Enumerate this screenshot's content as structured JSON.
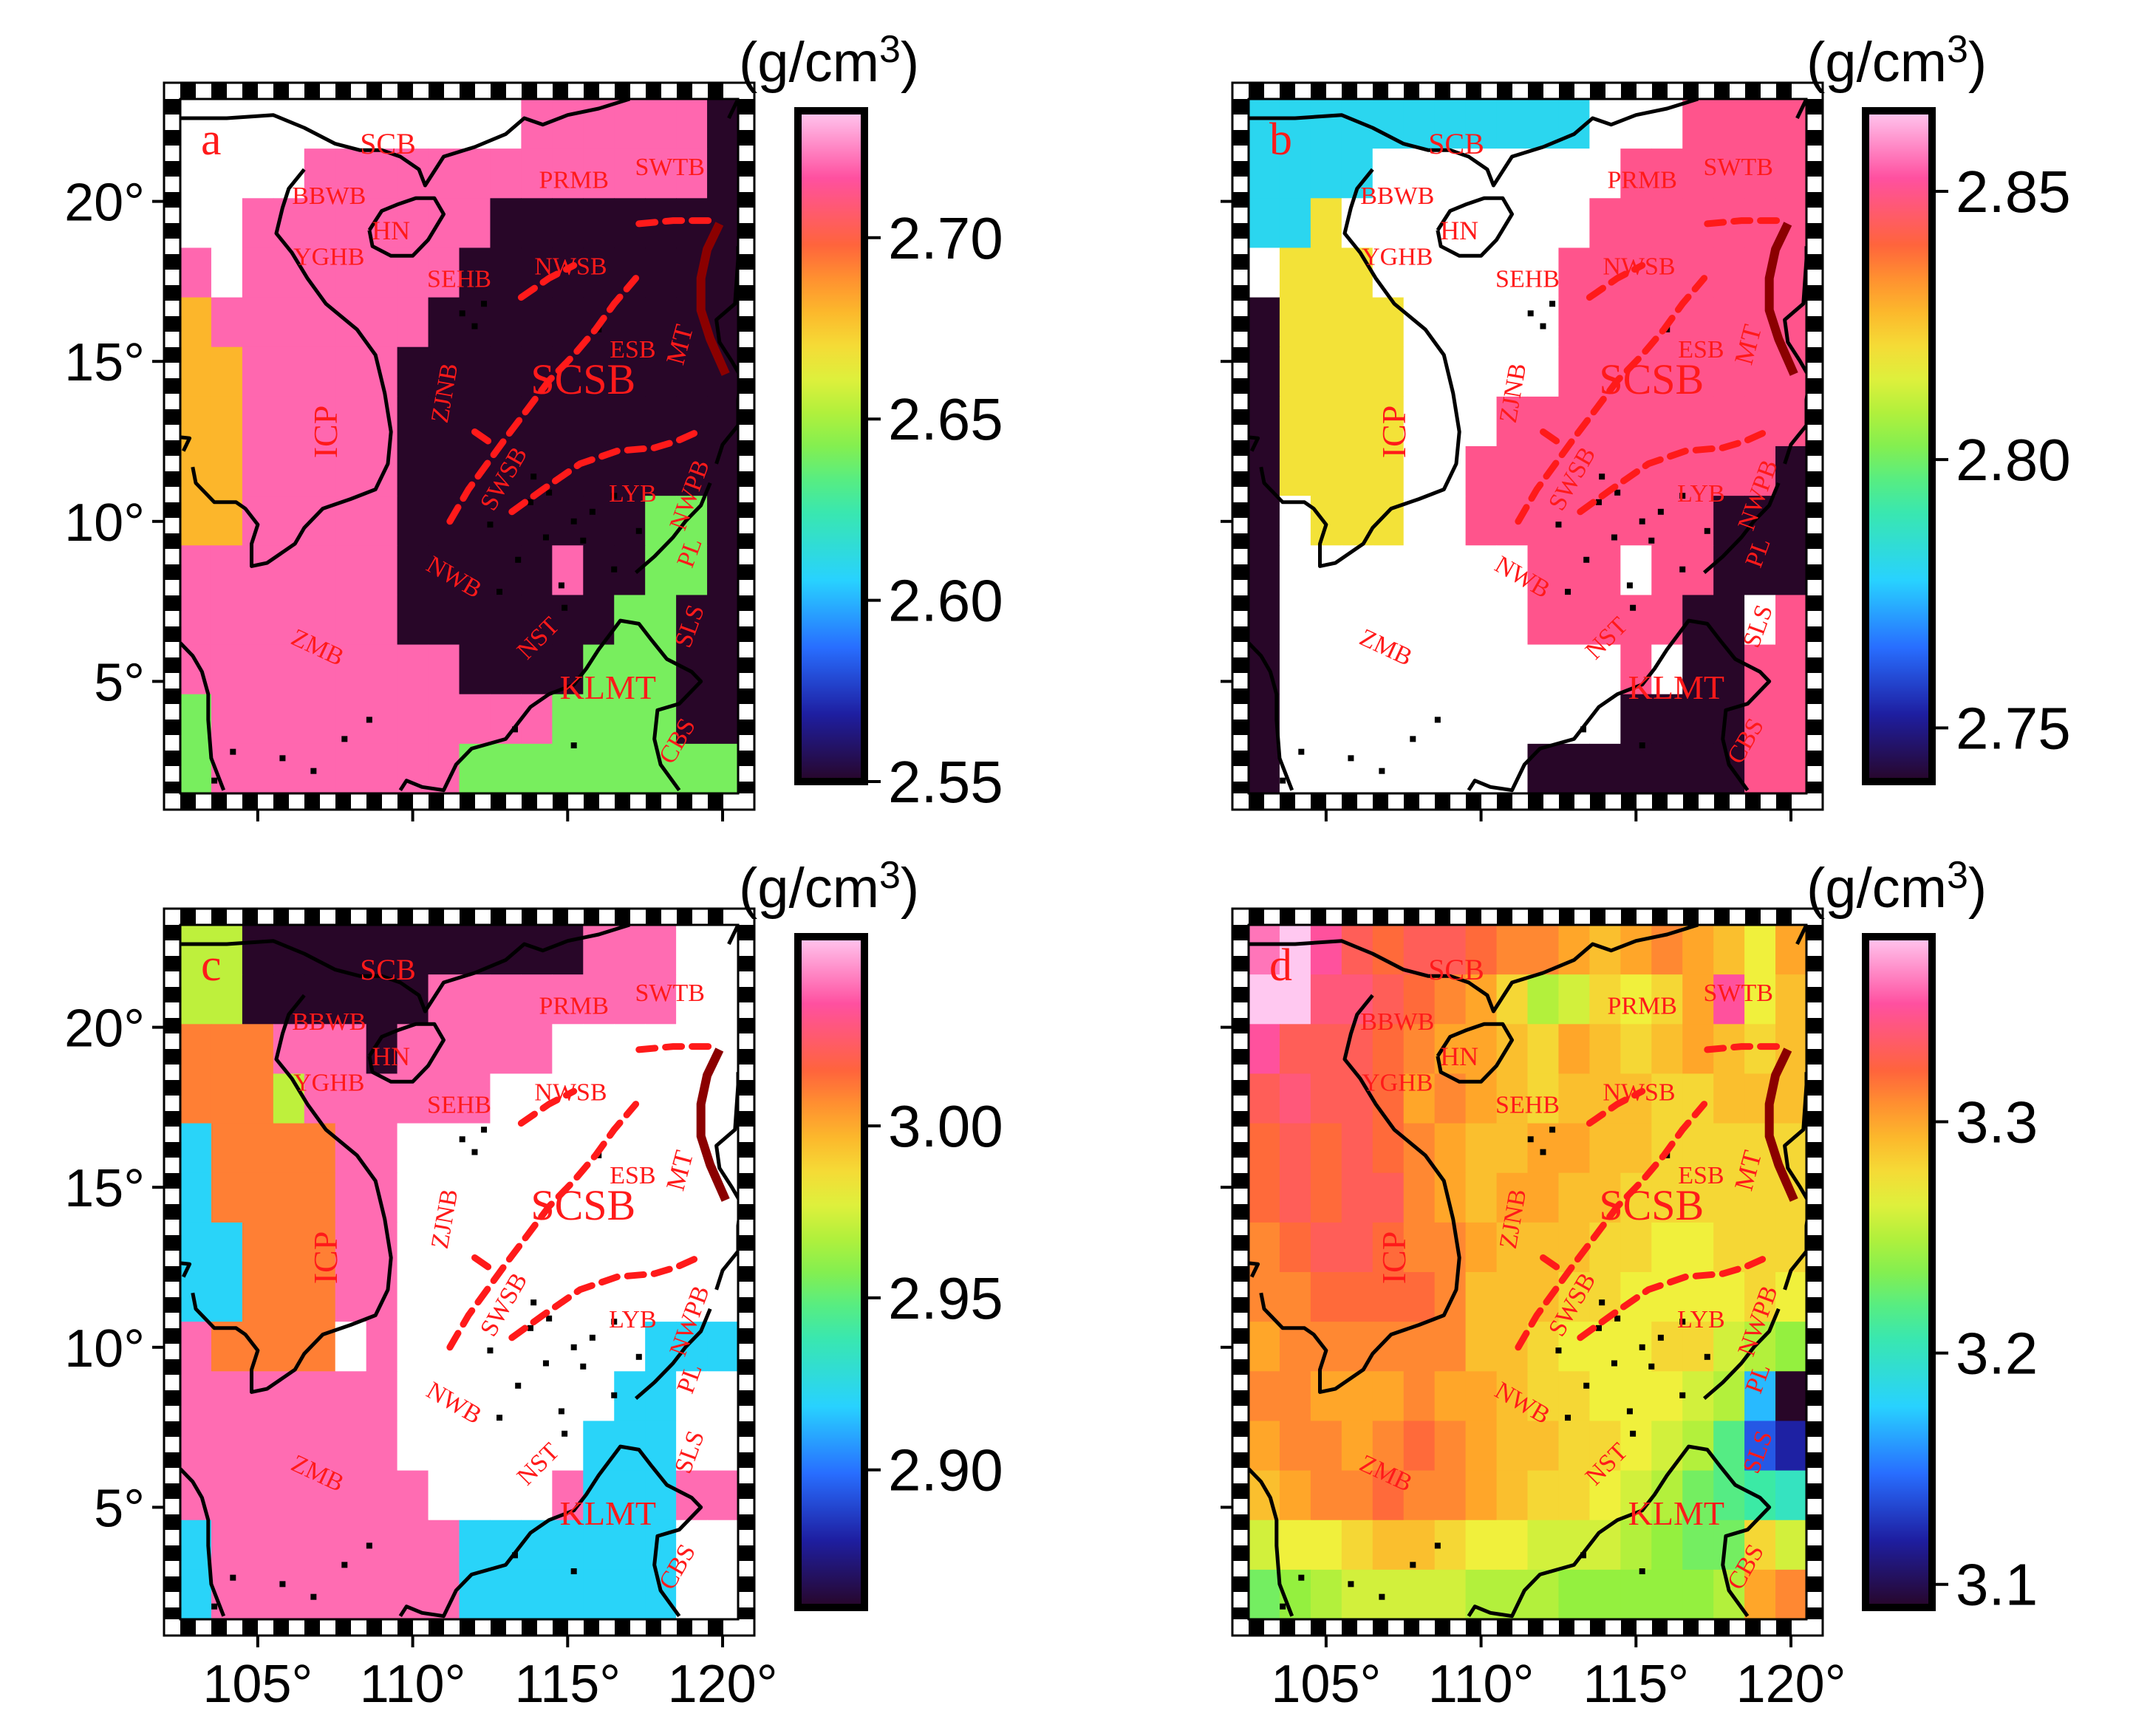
{
  "figure": {
    "lat_ticks": [
      "20°",
      "15°",
      "10°",
      "5°"
    ],
    "lon_ticks": [
      "105°",
      "110°",
      "115°",
      "120°"
    ]
  },
  "labels": {
    "SCB": "SCB",
    "BBWB": "BBWB",
    "HN": "HN",
    "YGHB": "YGHB",
    "SEHB": "SEHB",
    "PRMB": "PRMB",
    "SWTB": "SWTB",
    "NWSB": "NWSB",
    "ESB": "ESB",
    "MT": "MT",
    "SCSB": "SCSB",
    "ZJNB": "ZJNB",
    "ICP": "ICP",
    "SWSB": "SWSB",
    "LYB": "LYB",
    "NWPB": "NWPB",
    "PL": "PL",
    "NWB": "NWB",
    "ZMB": "ZMB",
    "NST": "NST",
    "SLS": "SLS",
    "KLMT": "KLMT",
    "CBS": "CBS"
  },
  "panels": [
    {
      "letter": "a",
      "unit": "(g/cm3)",
      "colorbar_ticks": [
        "2.70",
        "2.65",
        "2.60",
        "2.55"
      ],
      "colorbar_tick_values": [
        2.7,
        2.65,
        2.6,
        2.55
      ],
      "vmin": 2.55,
      "vmax": 2.735,
      "grid_values": [
        [
          2.74,
          2.74,
          2.74,
          2.74,
          2.74,
          2.74,
          2.74,
          2.74,
          2.74,
          2.74,
          2.74,
          2.72,
          2.72,
          2.72,
          2.72,
          2.72,
          2.72,
          2.55
        ],
        [
          2.74,
          2.74,
          2.74,
          2.74,
          2.72,
          2.72,
          2.72,
          2.72,
          2.72,
          2.72,
          2.72,
          2.72,
          2.72,
          2.72,
          2.72,
          2.72,
          2.72,
          2.55
        ],
        [
          2.74,
          2.74,
          2.72,
          2.72,
          2.72,
          2.72,
          2.72,
          2.72,
          2.72,
          2.72,
          2.55,
          2.55,
          2.55,
          2.55,
          2.55,
          2.55,
          2.55,
          2.55
        ],
        [
          2.72,
          2.74,
          2.72,
          2.72,
          2.72,
          2.72,
          2.72,
          2.72,
          2.72,
          2.55,
          2.55,
          2.55,
          2.55,
          2.55,
          2.55,
          2.55,
          2.55,
          2.55
        ],
        [
          2.68,
          2.72,
          2.72,
          2.72,
          2.72,
          2.72,
          2.72,
          2.72,
          2.55,
          2.55,
          2.55,
          2.55,
          2.55,
          2.55,
          2.55,
          2.55,
          2.55,
          2.55
        ],
        [
          2.68,
          2.68,
          2.72,
          2.72,
          2.72,
          2.72,
          2.72,
          2.55,
          2.55,
          2.55,
          2.55,
          2.55,
          2.55,
          2.55,
          2.55,
          2.55,
          2.55,
          2.55
        ],
        [
          2.68,
          2.68,
          2.72,
          2.72,
          2.72,
          2.72,
          2.72,
          2.55,
          2.55,
          2.55,
          2.55,
          2.55,
          2.55,
          2.55,
          2.55,
          2.55,
          2.55,
          2.55
        ],
        [
          2.68,
          2.68,
          2.72,
          2.72,
          2.72,
          2.72,
          2.72,
          2.55,
          2.55,
          2.55,
          2.55,
          2.55,
          2.55,
          2.55,
          2.55,
          2.55,
          2.55,
          2.55
        ],
        [
          2.68,
          2.68,
          2.72,
          2.72,
          2.72,
          2.72,
          2.72,
          2.55,
          2.55,
          2.55,
          2.55,
          2.55,
          2.55,
          2.55,
          2.55,
          2.64,
          2.64,
          2.55
        ],
        [
          2.72,
          2.72,
          2.72,
          2.72,
          2.72,
          2.72,
          2.72,
          2.55,
          2.55,
          2.55,
          2.55,
          2.55,
          2.72,
          2.55,
          2.55,
          2.64,
          2.64,
          2.55
        ],
        [
          2.72,
          2.72,
          2.72,
          2.72,
          2.72,
          2.72,
          2.72,
          2.55,
          2.55,
          2.55,
          2.55,
          2.55,
          2.55,
          2.55,
          2.64,
          2.64,
          2.55,
          2.55
        ],
        [
          2.72,
          2.72,
          2.72,
          2.72,
          2.72,
          2.72,
          2.72,
          2.72,
          2.72,
          2.55,
          2.55,
          2.55,
          2.55,
          2.64,
          2.64,
          2.64,
          2.55,
          2.55
        ],
        [
          2.64,
          2.72,
          2.72,
          2.72,
          2.72,
          2.72,
          2.72,
          2.72,
          2.72,
          2.72,
          2.72,
          2.72,
          2.64,
          2.64,
          2.64,
          2.64,
          2.55,
          2.55
        ],
        [
          2.64,
          2.72,
          2.72,
          2.72,
          2.72,
          2.72,
          2.72,
          2.72,
          2.72,
          2.64,
          2.64,
          2.64,
          2.64,
          2.64,
          2.64,
          2.64,
          2.64,
          2.64
        ]
      ]
    },
    {
      "letter": "b",
      "unit": "(g/cm3)",
      "colorbar_ticks": [
        "2.85",
        "2.80",
        "2.75"
      ],
      "colorbar_tick_values": [
        2.85,
        2.8,
        2.75
      ],
      "vmin": 2.74,
      "vmax": 2.865,
      "grid_values": [
        [
          2.78,
          2.78,
          2.78,
          2.78,
          2.78,
          2.78,
          2.78,
          2.78,
          2.78,
          2.78,
          2.78,
          2.87,
          2.87,
          2.87,
          2.85,
          2.85,
          2.85,
          2.85
        ],
        [
          2.78,
          2.78,
          2.78,
          2.78,
          2.87,
          2.87,
          2.87,
          2.87,
          2.87,
          2.87,
          2.87,
          2.87,
          2.85,
          2.85,
          2.85,
          2.85,
          2.85,
          2.85
        ],
        [
          2.78,
          2.78,
          2.82,
          2.87,
          2.87,
          2.87,
          2.87,
          2.87,
          2.87,
          2.87,
          2.87,
          2.85,
          2.85,
          2.85,
          2.85,
          2.85,
          2.85,
          2.85
        ],
        [
          2.87,
          2.82,
          2.82,
          2.82,
          2.87,
          2.87,
          2.87,
          2.87,
          2.87,
          2.87,
          2.85,
          2.85,
          2.85,
          2.85,
          2.85,
          2.85,
          2.85,
          2.85
        ],
        [
          2.74,
          2.82,
          2.82,
          2.82,
          2.82,
          2.87,
          2.87,
          2.87,
          2.87,
          2.87,
          2.85,
          2.85,
          2.85,
          2.85,
          2.85,
          2.85,
          2.85,
          2.85
        ],
        [
          2.74,
          2.82,
          2.82,
          2.82,
          2.82,
          2.87,
          2.87,
          2.87,
          2.87,
          2.87,
          2.85,
          2.85,
          2.85,
          2.85,
          2.85,
          2.85,
          2.85,
          2.85
        ],
        [
          2.74,
          2.82,
          2.82,
          2.82,
          2.82,
          2.87,
          2.87,
          2.87,
          2.85,
          2.85,
          2.85,
          2.85,
          2.85,
          2.85,
          2.85,
          2.85,
          2.85,
          2.85
        ],
        [
          2.74,
          2.82,
          2.82,
          2.82,
          2.82,
          2.87,
          2.87,
          2.85,
          2.85,
          2.85,
          2.85,
          2.85,
          2.85,
          2.85,
          2.85,
          2.85,
          2.85,
          2.74
        ],
        [
          2.74,
          2.87,
          2.82,
          2.82,
          2.82,
          2.87,
          2.87,
          2.85,
          2.85,
          2.85,
          2.85,
          2.85,
          2.85,
          2.85,
          2.85,
          2.74,
          2.74,
          2.74
        ],
        [
          2.74,
          2.87,
          2.87,
          2.87,
          2.87,
          2.87,
          2.87,
          2.87,
          2.87,
          2.85,
          2.85,
          2.85,
          2.87,
          2.85,
          2.85,
          2.74,
          2.74,
          2.74
        ],
        [
          2.74,
          2.87,
          2.87,
          2.87,
          2.87,
          2.87,
          2.87,
          2.87,
          2.87,
          2.85,
          2.85,
          2.85,
          2.85,
          2.85,
          2.74,
          2.74,
          2.87,
          2.85
        ],
        [
          2.74,
          2.87,
          2.87,
          2.87,
          2.87,
          2.87,
          2.87,
          2.87,
          2.87,
          2.87,
          2.87,
          2.87,
          2.85,
          2.87,
          2.74,
          2.74,
          2.85,
          2.85
        ],
        [
          2.74,
          2.87,
          2.87,
          2.87,
          2.87,
          2.87,
          2.87,
          2.87,
          2.87,
          2.87,
          2.87,
          2.87,
          2.74,
          2.74,
          2.74,
          2.74,
          2.85,
          2.85
        ],
        [
          2.74,
          2.87,
          2.87,
          2.87,
          2.87,
          2.87,
          2.87,
          2.87,
          2.87,
          2.74,
          2.74,
          2.74,
          2.74,
          2.74,
          2.74,
          2.74,
          2.85,
          2.85
        ]
      ]
    },
    {
      "letter": "c",
      "unit": "(g/cm3)",
      "colorbar_ticks": [
        "3.00",
        "2.95",
        "2.90"
      ],
      "colorbar_tick_values": [
        3.0,
        2.95,
        2.9
      ],
      "vmin": 2.86,
      "vmax": 3.055,
      "grid_values": [
        [
          2.97,
          2.97,
          2.86,
          2.86,
          2.86,
          2.86,
          2.86,
          2.86,
          2.86,
          2.86,
          2.86,
          2.86,
          2.86,
          3.04,
          3.04,
          3.04,
          3.06,
          3.06
        ],
        [
          2.97,
          2.97,
          2.86,
          2.86,
          2.86,
          2.86,
          2.86,
          2.86,
          3.04,
          3.04,
          3.04,
          3.04,
          3.04,
          3.04,
          3.04,
          3.04,
          3.06,
          3.06
        ],
        [
          3.01,
          3.01,
          3.01,
          3.04,
          3.04,
          3.04,
          2.86,
          3.04,
          3.04,
          3.04,
          3.04,
          3.04,
          3.06,
          3.06,
          3.06,
          3.06,
          3.06,
          3.06
        ],
        [
          3.01,
          3.01,
          3.01,
          2.97,
          3.04,
          3.04,
          3.04,
          3.04,
          3.04,
          3.04,
          3.06,
          3.06,
          3.06,
          3.06,
          3.06,
          3.06,
          3.06,
          3.06
        ],
        [
          2.92,
          3.01,
          3.01,
          3.01,
          3.01,
          3.04,
          3.04,
          3.06,
          3.06,
          3.06,
          3.06,
          3.06,
          3.06,
          3.06,
          3.06,
          3.06,
          3.06,
          3.06
        ],
        [
          2.92,
          3.01,
          3.01,
          3.01,
          3.01,
          3.04,
          3.04,
          3.06,
          3.06,
          3.06,
          3.06,
          3.06,
          3.06,
          3.06,
          3.06,
          3.06,
          3.06,
          3.06
        ],
        [
          2.92,
          2.92,
          3.01,
          3.01,
          3.01,
          3.04,
          3.04,
          3.06,
          3.06,
          3.06,
          3.06,
          3.06,
          3.06,
          3.06,
          3.06,
          3.06,
          3.06,
          3.06
        ],
        [
          2.92,
          2.92,
          3.01,
          3.01,
          3.01,
          3.04,
          3.04,
          3.06,
          3.06,
          3.06,
          3.06,
          3.06,
          3.06,
          3.06,
          3.06,
          3.06,
          3.06,
          3.06
        ],
        [
          3.04,
          3.01,
          3.01,
          3.01,
          3.01,
          3.06,
          3.04,
          3.06,
          3.06,
          3.06,
          3.06,
          3.06,
          3.06,
          3.06,
          3.06,
          2.92,
          2.92,
          2.92
        ],
        [
          3.04,
          3.04,
          3.04,
          3.04,
          3.04,
          3.04,
          3.04,
          3.06,
          3.06,
          3.06,
          3.06,
          3.06,
          3.06,
          3.06,
          2.92,
          2.92,
          3.06,
          3.06
        ],
        [
          3.04,
          3.04,
          3.04,
          3.04,
          3.04,
          3.04,
          3.04,
          3.06,
          3.06,
          3.06,
          3.06,
          3.06,
          3.06,
          2.92,
          2.92,
          2.92,
          3.06,
          3.06
        ],
        [
          3.04,
          3.04,
          3.04,
          3.04,
          3.04,
          3.04,
          3.04,
          3.04,
          3.06,
          3.06,
          3.06,
          3.06,
          3.04,
          2.92,
          2.92,
          2.92,
          3.04,
          3.04
        ],
        [
          2.92,
          3.04,
          3.04,
          3.04,
          3.04,
          3.04,
          3.04,
          3.04,
          3.04,
          2.92,
          2.92,
          2.92,
          2.92,
          2.92,
          2.92,
          2.92,
          3.06,
          3.06
        ],
        [
          2.92,
          3.04,
          3.04,
          3.04,
          3.04,
          3.04,
          3.04,
          3.04,
          3.04,
          2.92,
          2.92,
          2.92,
          2.92,
          2.92,
          2.92,
          2.92,
          3.06,
          3.06
        ]
      ]
    },
    {
      "letter": "d",
      "unit": "(g/cm3)",
      "colorbar_ticks": [
        "3.3",
        "3.2",
        "3.1"
      ],
      "colorbar_tick_values": [
        3.3,
        3.2,
        3.1
      ],
      "vmin": 3.09,
      "vmax": 3.38,
      "grid_values": [
        [
          3.36,
          3.38,
          3.35,
          3.33,
          3.32,
          3.33,
          3.33,
          3.32,
          3.31,
          3.31,
          3.3,
          3.29,
          3.3,
          3.31,
          3.3,
          3.29,
          3.27,
          3.3
        ],
        [
          3.38,
          3.38,
          3.34,
          3.34,
          3.33,
          3.32,
          3.31,
          3.3,
          3.28,
          3.25,
          3.26,
          3.28,
          3.27,
          3.28,
          3.3,
          3.35,
          3.27,
          3.29
        ],
        [
          3.35,
          3.33,
          3.33,
          3.33,
          3.32,
          3.31,
          3.3,
          3.3,
          3.29,
          3.28,
          3.3,
          3.29,
          3.28,
          3.29,
          3.3,
          3.29,
          3.28,
          3.29
        ],
        [
          3.33,
          3.34,
          3.33,
          3.33,
          3.32,
          3.3,
          3.31,
          3.3,
          3.29,
          3.28,
          3.29,
          3.29,
          3.29,
          3.28,
          3.28,
          3.29,
          3.29,
          3.29
        ],
        [
          3.32,
          3.33,
          3.32,
          3.33,
          3.32,
          3.31,
          3.3,
          3.29,
          3.29,
          3.3,
          3.3,
          3.29,
          3.29,
          3.28,
          3.28,
          3.28,
          3.28,
          3.28
        ],
        [
          3.32,
          3.33,
          3.32,
          3.33,
          3.33,
          3.31,
          3.3,
          3.29,
          3.3,
          3.3,
          3.29,
          3.29,
          3.28,
          3.28,
          3.28,
          3.28,
          3.28,
          3.28
        ],
        [
          3.31,
          3.32,
          3.33,
          3.33,
          3.32,
          3.31,
          3.31,
          3.3,
          3.29,
          3.29,
          3.29,
          3.28,
          3.28,
          3.27,
          3.27,
          3.28,
          3.28,
          3.28
        ],
        [
          3.31,
          3.31,
          3.32,
          3.32,
          3.32,
          3.32,
          3.31,
          3.29,
          3.29,
          3.29,
          3.28,
          3.28,
          3.27,
          3.27,
          3.27,
          3.27,
          3.28,
          3.27
        ],
        [
          3.3,
          3.31,
          3.31,
          3.31,
          3.31,
          3.31,
          3.31,
          3.29,
          3.29,
          3.28,
          3.27,
          3.27,
          3.27,
          3.28,
          3.28,
          3.26,
          3.25,
          3.24
        ],
        [
          3.31,
          3.31,
          3.3,
          3.3,
          3.3,
          3.31,
          3.3,
          3.3,
          3.29,
          3.28,
          3.28,
          3.27,
          3.27,
          3.27,
          3.26,
          3.25,
          3.17,
          3.09
        ],
        [
          3.3,
          3.31,
          3.31,
          3.3,
          3.31,
          3.32,
          3.31,
          3.3,
          3.29,
          3.29,
          3.28,
          3.28,
          3.27,
          3.26,
          3.25,
          3.22,
          3.14,
          3.12
        ],
        [
          3.29,
          3.3,
          3.31,
          3.31,
          3.32,
          3.31,
          3.31,
          3.3,
          3.29,
          3.28,
          3.28,
          3.27,
          3.26,
          3.25,
          3.23,
          3.22,
          3.21,
          3.2
        ],
        [
          3.26,
          3.27,
          3.27,
          3.28,
          3.29,
          3.29,
          3.28,
          3.27,
          3.27,
          3.26,
          3.26,
          3.26,
          3.25,
          3.24,
          3.23,
          3.23,
          3.28,
          3.26
        ],
        [
          3.23,
          3.24,
          3.25,
          3.26,
          3.26,
          3.26,
          3.26,
          3.25,
          3.25,
          3.25,
          3.24,
          3.24,
          3.24,
          3.24,
          3.24,
          3.25,
          3.3,
          3.31
        ]
      ]
    }
  ]
}
